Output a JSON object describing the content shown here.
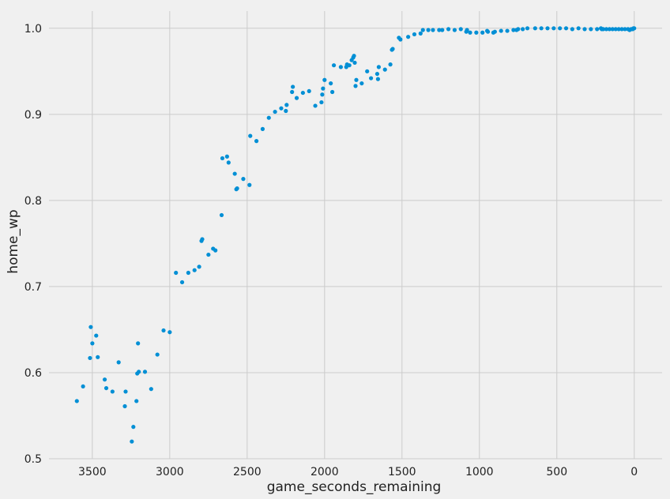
{
  "chart_data": {
    "type": "scatter",
    "title": "",
    "xlabel": "game_seconds_remaining",
    "ylabel": "home_wp",
    "xlim": [
      3780,
      -180
    ],
    "ylim": [
      0.5,
      1.02
    ],
    "x_reversed": true,
    "x_ticks": [
      3500,
      3000,
      2500,
      2000,
      1500,
      1000,
      500,
      0
    ],
    "x_tick_labels": [
      "3500",
      "3000",
      "2500",
      "2000",
      "1500",
      "1000",
      "500",
      "0"
    ],
    "y_ticks": [
      0.5,
      0.6,
      0.7,
      0.8,
      0.9,
      1.0
    ],
    "y_tick_labels": [
      "0.5",
      "0.6",
      "0.7",
      "0.8",
      "0.9",
      "1.0"
    ],
    "grid": true,
    "point_color": "#008fd5",
    "background_color": "#f0f0f0",
    "grid_color": "#cbcbcb",
    "points": [
      [
        3600,
        0.567
      ],
      [
        3560,
        0.584
      ],
      [
        3515,
        0.617
      ],
      [
        3510,
        0.653
      ],
      [
        3500,
        0.634
      ],
      [
        3475,
        0.643
      ],
      [
        3465,
        0.618
      ],
      [
        3420,
        0.592
      ],
      [
        3410,
        0.582
      ],
      [
        3370,
        0.578
      ],
      [
        3330,
        0.612
      ],
      [
        3290,
        0.561
      ],
      [
        3285,
        0.578
      ],
      [
        3245,
        0.52
      ],
      [
        3235,
        0.537
      ],
      [
        3215,
        0.567
      ],
      [
        3210,
        0.599
      ],
      [
        3205,
        0.634
      ],
      [
        3200,
        0.601
      ],
      [
        3160,
        0.601
      ],
      [
        3120,
        0.581
      ],
      [
        3080,
        0.621
      ],
      [
        3040,
        0.649
      ],
      [
        3000,
        0.647
      ],
      [
        2960,
        0.716
      ],
      [
        2920,
        0.705
      ],
      [
        2880,
        0.716
      ],
      [
        2840,
        0.719
      ],
      [
        2810,
        0.723
      ],
      [
        2795,
        0.753
      ],
      [
        2790,
        0.755
      ],
      [
        2750,
        0.737
      ],
      [
        2720,
        0.744
      ],
      [
        2705,
        0.742
      ],
      [
        2665,
        0.783
      ],
      [
        2660,
        0.849
      ],
      [
        2630,
        0.851
      ],
      [
        2620,
        0.844
      ],
      [
        2580,
        0.831
      ],
      [
        2570,
        0.813
      ],
      [
        2565,
        0.814
      ],
      [
        2525,
        0.825
      ],
      [
        2485,
        0.818
      ],
      [
        2480,
        0.875
      ],
      [
        2440,
        0.869
      ],
      [
        2400,
        0.883
      ],
      [
        2360,
        0.896
      ],
      [
        2320,
        0.903
      ],
      [
        2280,
        0.907
      ],
      [
        2250,
        0.904
      ],
      [
        2245,
        0.911
      ],
      [
        2210,
        0.926
      ],
      [
        2205,
        0.932
      ],
      [
        2180,
        0.919
      ],
      [
        2140,
        0.925
      ],
      [
        2100,
        0.927
      ],
      [
        2060,
        0.91
      ],
      [
        2020,
        0.914
      ],
      [
        2015,
        0.923
      ],
      [
        2010,
        0.93
      ],
      [
        2000,
        0.94
      ],
      [
        1960,
        0.936
      ],
      [
        1950,
        0.926
      ],
      [
        1940,
        0.957
      ],
      [
        1895,
        0.955
      ],
      [
        1860,
        0.955
      ],
      [
        1855,
        0.958
      ],
      [
        1840,
        0.957
      ],
      [
        1825,
        0.963
      ],
      [
        1815,
        0.966
      ],
      [
        1810,
        0.968
      ],
      [
        1805,
        0.96
      ],
      [
        1800,
        0.933
      ],
      [
        1795,
        0.94
      ],
      [
        1760,
        0.936
      ],
      [
        1725,
        0.95
      ],
      [
        1700,
        0.942
      ],
      [
        1660,
        0.947
      ],
      [
        1655,
        0.941
      ],
      [
        1650,
        0.955
      ],
      [
        1610,
        0.952
      ],
      [
        1575,
        0.958
      ],
      [
        1565,
        0.975
      ],
      [
        1560,
        0.976
      ],
      [
        1520,
        0.989
      ],
      [
        1510,
        0.987
      ],
      [
        1460,
        0.99
      ],
      [
        1420,
        0.993
      ],
      [
        1380,
        0.994
      ],
      [
        1365,
        0.998
      ],
      [
        1330,
        0.998
      ],
      [
        1300,
        0.998
      ],
      [
        1260,
        0.998
      ],
      [
        1240,
        0.998
      ],
      [
        1200,
        0.999
      ],
      [
        1160,
        0.998
      ],
      [
        1120,
        0.999
      ],
      [
        1085,
        0.996
      ],
      [
        1080,
        0.998
      ],
      [
        1060,
        0.995
      ],
      [
        1020,
        0.995
      ],
      [
        980,
        0.995
      ],
      [
        950,
        0.997
      ],
      [
        945,
        0.996
      ],
      [
        910,
        0.995
      ],
      [
        900,
        0.996
      ],
      [
        860,
        0.997
      ],
      [
        820,
        0.997
      ],
      [
        780,
        0.998
      ],
      [
        760,
        0.998
      ],
      [
        750,
        0.999
      ],
      [
        720,
        0.999
      ],
      [
        690,
        1.0
      ],
      [
        640,
        1.0
      ],
      [
        600,
        1.0
      ],
      [
        560,
        1.0
      ],
      [
        520,
        1.0
      ],
      [
        480,
        1.0
      ],
      [
        440,
        1.0
      ],
      [
        400,
        0.999
      ],
      [
        360,
        1.0
      ],
      [
        320,
        0.999
      ],
      [
        280,
        0.999
      ],
      [
        240,
        0.999
      ],
      [
        215,
        1.0
      ],
      [
        210,
        0.999
      ],
      [
        200,
        0.999
      ],
      [
        180,
        0.999
      ],
      [
        160,
        0.999
      ],
      [
        140,
        0.999
      ],
      [
        120,
        0.999
      ],
      [
        100,
        0.999
      ],
      [
        80,
        0.999
      ],
      [
        60,
        0.999
      ],
      [
        40,
        0.999
      ],
      [
        30,
        0.998
      ],
      [
        20,
        0.999
      ],
      [
        10,
        0.999
      ],
      [
        5,
        1.0
      ],
      [
        0,
        1.0
      ]
    ]
  }
}
